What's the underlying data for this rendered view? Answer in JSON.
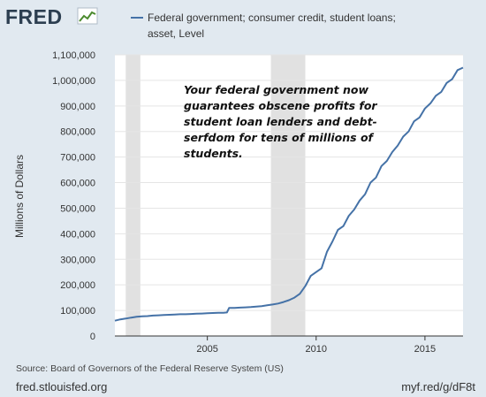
{
  "brand": {
    "logo": "FRED",
    "logo_icon": "line-chart-icon"
  },
  "colors": {
    "background": "#e1e9f0",
    "plot_background": "#ffffff",
    "series_line": "#4572a7",
    "recession_shade": "#e1e1e1",
    "grid": "#e5e5e5"
  },
  "legend": {
    "line1": "Federal government; consumer credit, student loans;",
    "line2": "asset, Level"
  },
  "annotation": {
    "lines": [
      "Your federal government now",
      "guarantees obscene profits for",
      "student loan lenders and debt-",
      "serfdom for tens of millions of",
      "students."
    ]
  },
  "footer": {
    "source": "Source: Board of Governors of the Federal Reserve System (US)",
    "site": "fred.stlouisfed.org",
    "shortlink": "myf.red/g/dF8t"
  },
  "chart_data": {
    "type": "line",
    "ylabel": "Millions of Dollars",
    "xlim": [
      2000.75,
      2016.75
    ],
    "ylim": [
      0,
      1100000
    ],
    "yticks": [
      0,
      100000,
      200000,
      300000,
      400000,
      500000,
      600000,
      700000,
      800000,
      900000,
      1000000,
      1100000
    ],
    "ytick_labels": [
      "0",
      "100,000",
      "200,000",
      "300,000",
      "400,000",
      "500,000",
      "600,000",
      "700,000",
      "800,000",
      "900,000",
      "1,000,000",
      "1,100,000"
    ],
    "xticks": [
      2005,
      2010,
      2015
    ],
    "xtick_labels": [
      "2005",
      "2010",
      "2015"
    ],
    "grid": "horizontal",
    "legend_placement": "top",
    "recessions": [
      [
        2001.25,
        2001.92
      ],
      [
        2007.92,
        2009.5
      ]
    ],
    "series": [
      {
        "x": [
          2000.75,
          2001.0,
          2001.25,
          2001.5,
          2001.75,
          2002.0,
          2002.25,
          2002.5,
          2002.75,
          2003.0,
          2003.25,
          2003.5,
          2003.75,
          2004.0,
          2004.25,
          2004.5,
          2004.75,
          2005.0,
          2005.25,
          2005.5,
          2005.75,
          2005.9,
          2006.0,
          2006.25,
          2006.5,
          2006.75,
          2007.0,
          2007.25,
          2007.5,
          2007.75,
          2008.0,
          2008.25,
          2008.5,
          2008.75,
          2009.0,
          2009.25,
          2009.5,
          2009.75,
          2010.0,
          2010.25,
          2010.5,
          2010.75,
          2011.0,
          2011.25,
          2011.5,
          2011.75,
          2012.0,
          2012.25,
          2012.5,
          2012.75,
          2013.0,
          2013.25,
          2013.5,
          2013.75,
          2014.0,
          2014.25,
          2014.5,
          2014.75,
          2015.0,
          2015.25,
          2015.5,
          2015.75,
          2016.0,
          2016.25,
          2016.5,
          2016.75
        ],
        "values": [
          60000,
          65000,
          68000,
          72000,
          75000,
          77000,
          78000,
          80000,
          81000,
          82000,
          83000,
          84000,
          85000,
          85000,
          86000,
          87000,
          88000,
          89000,
          90000,
          91000,
          91000,
          92000,
          110000,
          110000,
          111000,
          112000,
          113000,
          115000,
          117000,
          120000,
          123000,
          127000,
          133000,
          140000,
          150000,
          165000,
          195000,
          235000,
          250000,
          265000,
          330000,
          370000,
          415000,
          430000,
          470000,
          495000,
          530000,
          555000,
          600000,
          620000,
          665000,
          685000,
          720000,
          745000,
          780000,
          800000,
          840000,
          855000,
          890000,
          910000,
          940000,
          955000,
          990000,
          1005000,
          1040000,
          1050000
        ]
      }
    ]
  }
}
